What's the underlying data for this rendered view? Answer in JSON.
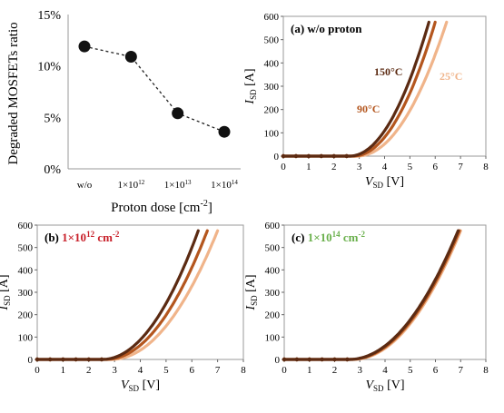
{
  "colors": {
    "c150": "#5b2a12",
    "c90": "#b4561e",
    "c25": "#f0b48a",
    "dot": "#111111",
    "panel_b_label": "#c8202a",
    "panel_c_label": "#6ab04c"
  },
  "chart_data": [
    {
      "type": "line",
      "id": "degraded",
      "ylabel": "Degraded MOSFETs ratio",
      "xlabel_text": "Proton dose [cm",
      "xlabel_sup": "-2",
      "xlabel_end": "]",
      "categories": [
        {
          "base": "w/o",
          "exp": ""
        },
        {
          "base": "1×10",
          "exp": "12"
        },
        {
          "base": "1×10",
          "exp": "13"
        },
        {
          "base": "1×10",
          "exp": "14"
        }
      ],
      "values": [
        11.9,
        10.9,
        5.4,
        3.6
      ],
      "yticks": [
        "0%",
        "5%",
        "10%",
        "15%"
      ],
      "ylim": [
        0,
        15
      ],
      "line_style": "dashed"
    },
    {
      "type": "line",
      "id": "a",
      "label_text": "(a) w/o proton",
      "label_exp": "",
      "label_tail": "",
      "xlim": [
        0,
        8
      ],
      "ylim": [
        0,
        600
      ],
      "xticks": [
        "0",
        "1",
        "2",
        "3",
        "4",
        "5",
        "6",
        "7",
        "8"
      ],
      "yticks": [
        "0",
        "100",
        "200",
        "300",
        "400",
        "500",
        "600"
      ],
      "series": [
        {
          "name": "150°C",
          "vth": 2.6,
          "vend": 5.75
        },
        {
          "name": "90°C",
          "vth": 2.75,
          "vend": 6.0
        },
        {
          "name": "25°C",
          "vth": 2.9,
          "vend": 6.45
        }
      ]
    },
    {
      "type": "line",
      "id": "b",
      "label_text": "(b) ",
      "label_colored": "1×10",
      "label_exp": "12",
      "label_tail": " cm",
      "label_tail_exp": "-2",
      "xlim": [
        0,
        8
      ],
      "ylim": [
        0,
        600
      ],
      "xticks": [
        "0",
        "1",
        "2",
        "3",
        "4",
        "5",
        "6",
        "7",
        "8"
      ],
      "yticks": [
        "0",
        "100",
        "200",
        "300",
        "400",
        "500",
        "600"
      ],
      "series": [
        {
          "vth": 2.5,
          "vend": 6.25
        },
        {
          "vth": 2.65,
          "vend": 6.6
        },
        {
          "vth": 2.85,
          "vend": 7.0
        }
      ]
    },
    {
      "type": "line",
      "id": "c",
      "label_text": "(c) ",
      "label_colored": "1×10",
      "label_exp": "14",
      "label_tail": " cm",
      "label_tail_exp": "-2",
      "xlim": [
        0,
        8
      ],
      "ylim": [
        0,
        600
      ],
      "xticks": [
        "0",
        "1",
        "2",
        "3",
        "4",
        "5",
        "6",
        "7",
        "8"
      ],
      "yticks": [
        "0",
        "100",
        "200",
        "300",
        "400",
        "500",
        "600"
      ],
      "series": [
        {
          "vth": 2.55,
          "vend": 6.9
        },
        {
          "vth": 2.62,
          "vend": 6.95
        },
        {
          "vth": 2.7,
          "vend": 7.0
        }
      ]
    }
  ],
  "axis": {
    "y_main": "I",
    "y_sub": "SD",
    "y_unit": " [A]",
    "x_main": "V",
    "x_sub": "SD",
    "x_unit": " [V]"
  }
}
